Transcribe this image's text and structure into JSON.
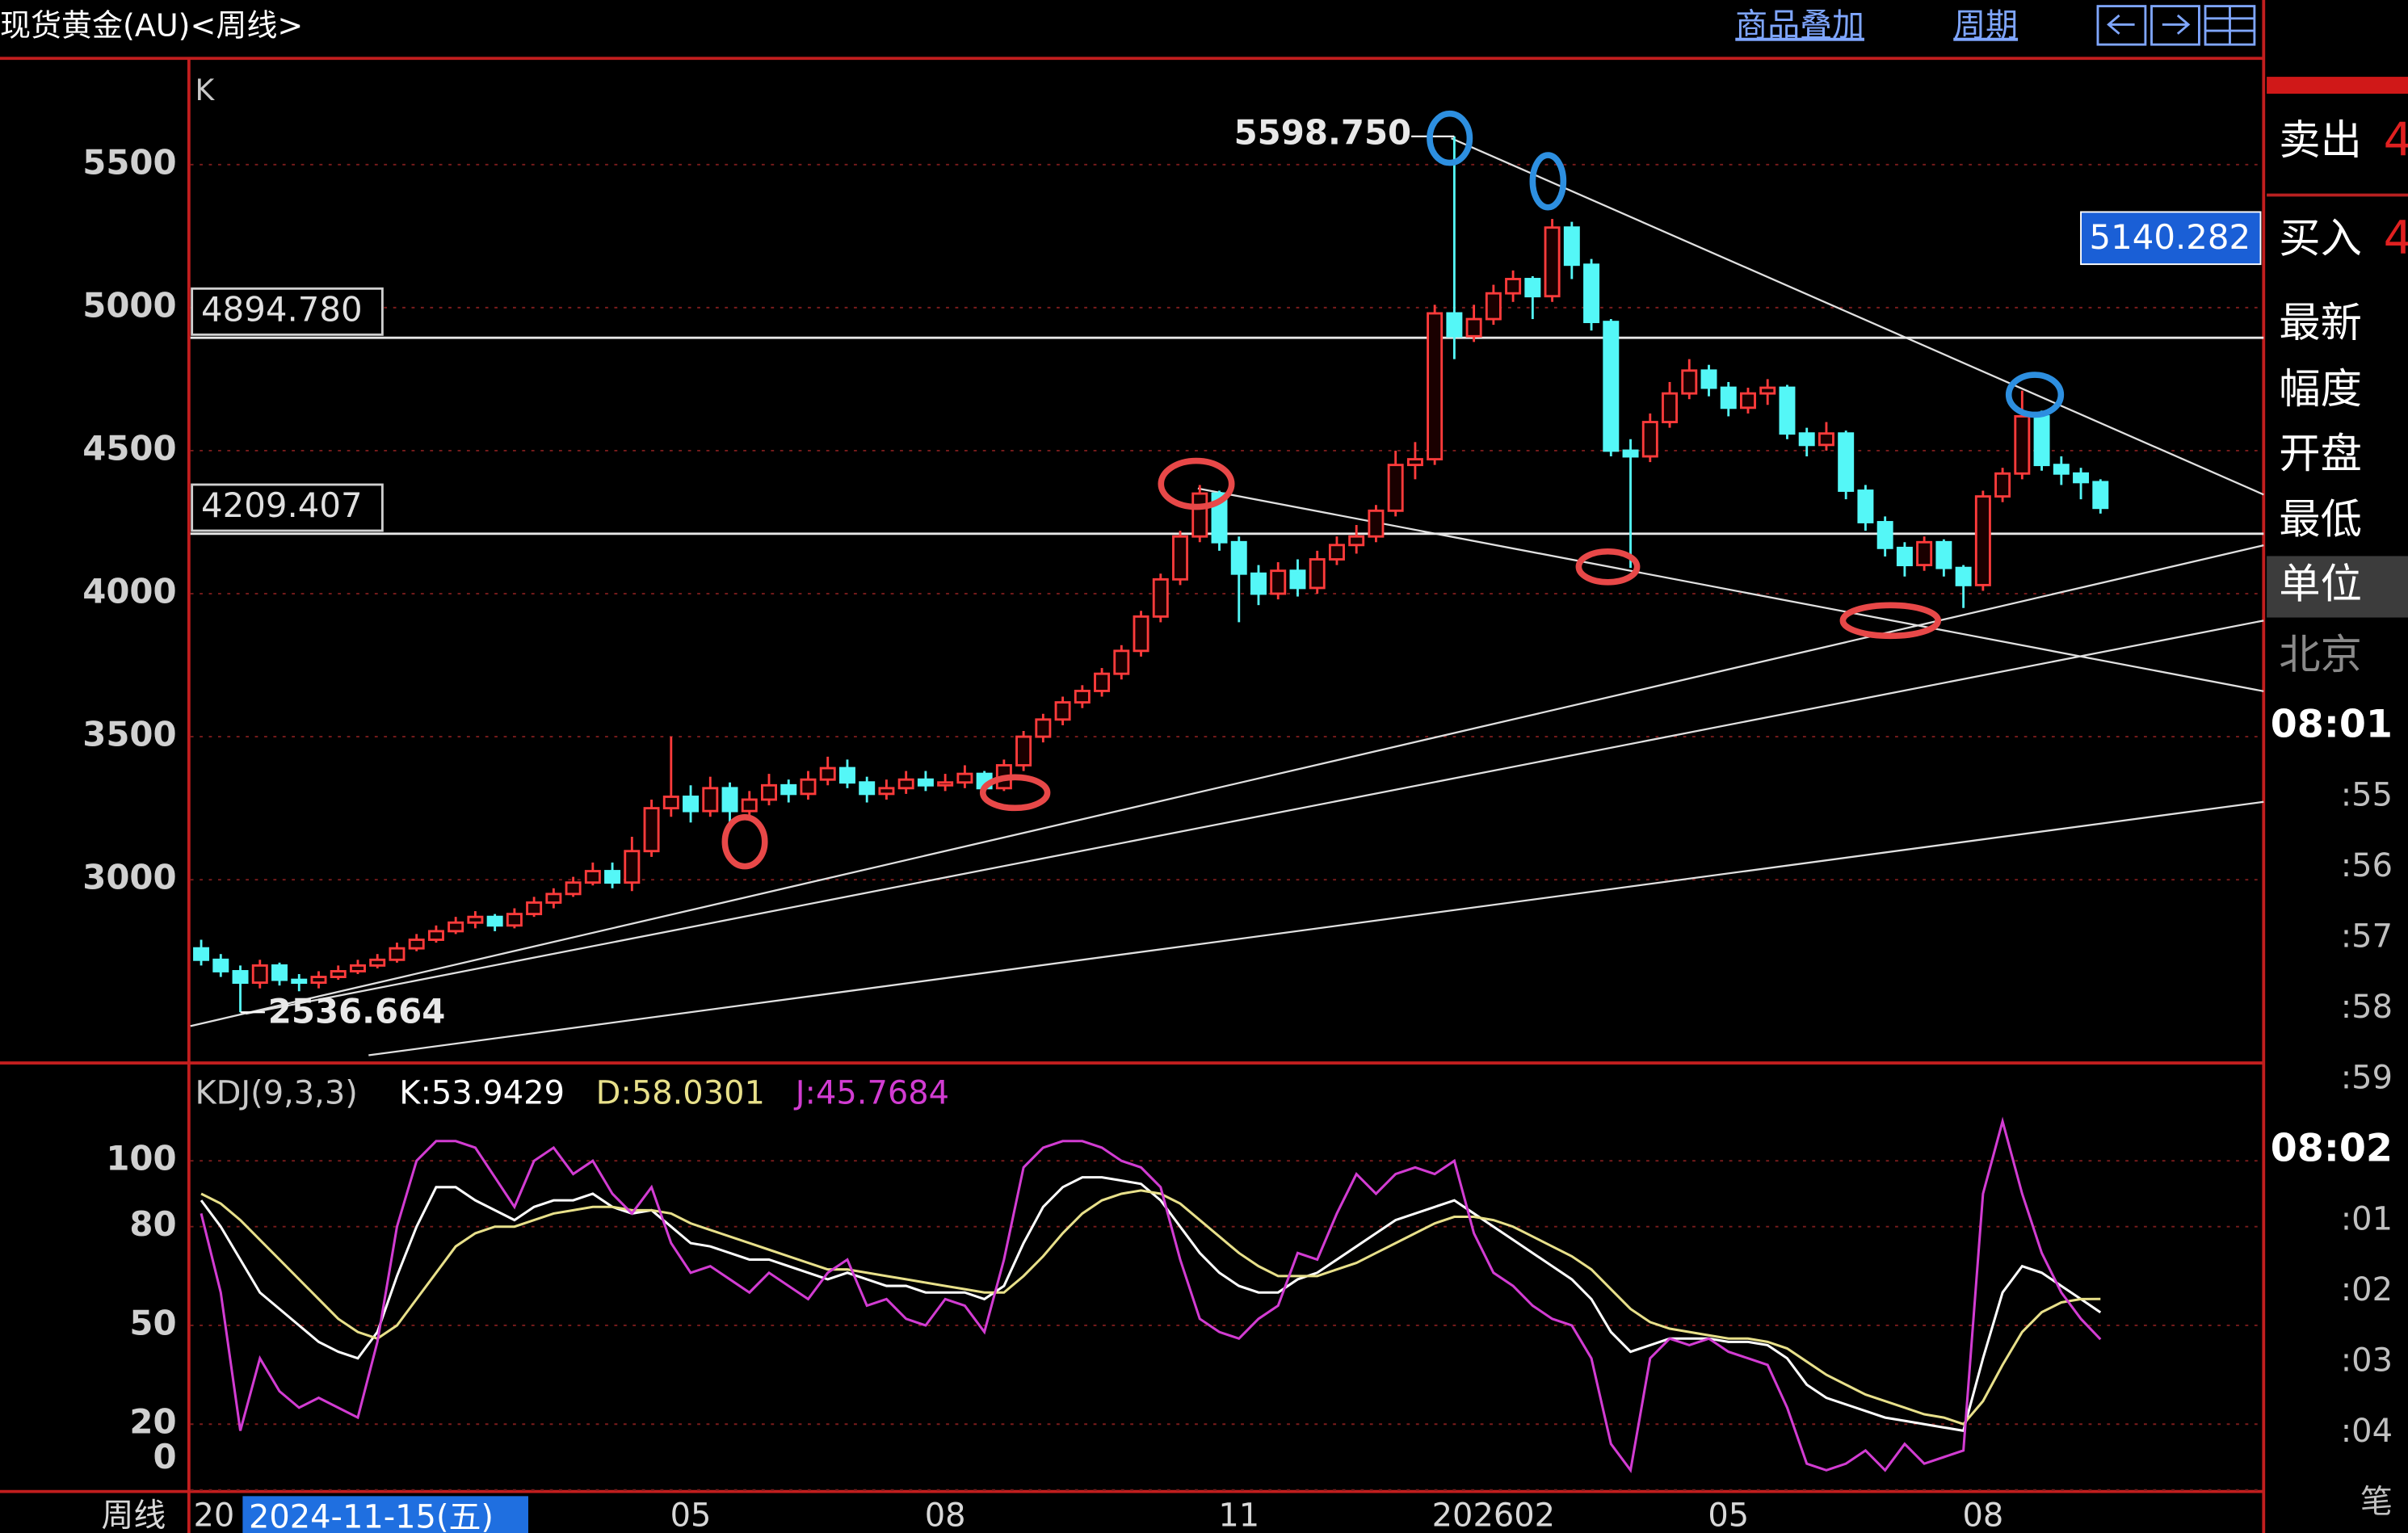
{
  "header": {
    "title": "现货黄金(AU)<周线>",
    "menu": [
      "商品叠加",
      "周期"
    ]
  },
  "chart_data": [
    {
      "type": "candlestick",
      "label": "K",
      "categories": [
        "20",
        null,
        null,
        null,
        null,
        null,
        null,
        null,
        null,
        null,
        null,
        null,
        null,
        null,
        null,
        null,
        null,
        null,
        null,
        null,
        null,
        null,
        null,
        null,
        null,
        "05",
        null,
        null,
        null,
        null,
        null,
        null,
        null,
        null,
        null,
        null,
        null,
        null,
        "08",
        null,
        null,
        null,
        null,
        null,
        null,
        null,
        null,
        null,
        null,
        null,
        null,
        null,
        null,
        "11",
        null,
        null,
        null,
        null,
        null,
        null,
        null,
        null,
        null,
        null,
        null,
        null,
        "202602",
        null,
        null,
        null,
        null,
        null,
        null,
        null,
        null,
        null,
        null,
        null,
        "05",
        null,
        null,
        null,
        null,
        null,
        null,
        null,
        null,
        null,
        null,
        null,
        null,
        "08",
        null,
        null,
        null,
        null,
        null,
        null,
        null
      ],
      "ohlc": [
        [
          2760,
          2790,
          2700,
          2720
        ],
        [
          2720,
          2740,
          2660,
          2680
        ],
        [
          2680,
          2700,
          2536.664,
          2640
        ],
        [
          2640,
          2720,
          2620,
          2700
        ],
        [
          2700,
          2710,
          2630,
          2650
        ],
        [
          2650,
          2670,
          2610,
          2640
        ],
        [
          2640,
          2680,
          2620,
          2660
        ],
        [
          2660,
          2700,
          2650,
          2680
        ],
        [
          2680,
          2720,
          2670,
          2700
        ],
        [
          2700,
          2740,
          2690,
          2720
        ],
        [
          2720,
          2780,
          2710,
          2760
        ],
        [
          2760,
          2810,
          2750,
          2790
        ],
        [
          2790,
          2840,
          2780,
          2820
        ],
        [
          2820,
          2870,
          2810,
          2850
        ],
        [
          2850,
          2890,
          2830,
          2870
        ],
        [
          2870,
          2880,
          2820,
          2840
        ],
        [
          2840,
          2900,
          2830,
          2880
        ],
        [
          2880,
          2940,
          2870,
          2920
        ],
        [
          2920,
          2970,
          2900,
          2950
        ],
        [
          2950,
          3010,
          2940,
          2990
        ],
        [
          2990,
          3060,
          2980,
          3030
        ],
        [
          3030,
          3060,
          2970,
          2990
        ],
        [
          2990,
          3150,
          2960,
          3100
        ],
        [
          3100,
          3280,
          3080,
          3250
        ],
        [
          3250,
          3500,
          3220,
          3290
        ],
        [
          3290,
          3330,
          3200,
          3240
        ],
        [
          3240,
          3360,
          3220,
          3320
        ],
        [
          3320,
          3340,
          3200,
          3240
        ],
        [
          3240,
          3310,
          3220,
          3280
        ],
        [
          3280,
          3370,
          3260,
          3330
        ],
        [
          3330,
          3350,
          3270,
          3300
        ],
        [
          3300,
          3380,
          3280,
          3350
        ],
        [
          3350,
          3430,
          3330,
          3390
        ],
        [
          3390,
          3420,
          3320,
          3340
        ],
        [
          3340,
          3360,
          3270,
          3300
        ],
        [
          3300,
          3350,
          3280,
          3320
        ],
        [
          3320,
          3380,
          3300,
          3350
        ],
        [
          3350,
          3380,
          3310,
          3330
        ],
        [
          3330,
          3370,
          3310,
          3340
        ],
        [
          3340,
          3400,
          3320,
          3370
        ],
        [
          3370,
          3380,
          3300,
          3320
        ],
        [
          3320,
          3420,
          3310,
          3400
        ],
        [
          3400,
          3520,
          3380,
          3500
        ],
        [
          3500,
          3580,
          3480,
          3560
        ],
        [
          3560,
          3640,
          3540,
          3620
        ],
        [
          3620,
          3680,
          3600,
          3660
        ],
        [
          3660,
          3740,
          3640,
          3720
        ],
        [
          3720,
          3820,
          3700,
          3800
        ],
        [
          3800,
          3940,
          3780,
          3920
        ],
        [
          3920,
          4070,
          3900,
          4050
        ],
        [
          4050,
          4220,
          4030,
          4200
        ],
        [
          4200,
          4380,
          4180,
          4350
        ],
        [
          4350,
          4360,
          4150,
          4180
        ],
        [
          4180,
          4200,
          3900,
          4070
        ],
        [
          4070,
          4100,
          3960,
          4000
        ],
        [
          4000,
          4110,
          3980,
          4080
        ],
        [
          4080,
          4120,
          3990,
          4020
        ],
        [
          4020,
          4150,
          4000,
          4120
        ],
        [
          4120,
          4200,
          4100,
          4170
        ],
        [
          4170,
          4240,
          4140,
          4200
        ],
        [
          4200,
          4310,
          4180,
          4290
        ],
        [
          4290,
          4500,
          4270,
          4450
        ],
        [
          4450,
          4530,
          4400,
          4470
        ],
        [
          4470,
          5010,
          4450,
          4980
        ],
        [
          4980,
          5598.75,
          4820,
          4900
        ],
        [
          4900,
          5010,
          4880,
          4960
        ],
        [
          4960,
          5080,
          4940,
          5050
        ],
        [
          5050,
          5130,
          5020,
          5100
        ],
        [
          5100,
          5110,
          4960,
          5040
        ],
        [
          5040,
          5310,
          5020,
          5280
        ],
        [
          5280,
          5300,
          5100,
          5150
        ],
        [
          5150,
          5170,
          4920,
          4950
        ],
        [
          4950,
          4960,
          4480,
          4500
        ],
        [
          4500,
          4540,
          4090,
          4480
        ],
        [
          4480,
          4630,
          4460,
          4600
        ],
        [
          4600,
          4740,
          4580,
          4700
        ],
        [
          4700,
          4820,
          4680,
          4780
        ],
        [
          4780,
          4800,
          4690,
          4720
        ],
        [
          4720,
          4740,
          4620,
          4650
        ],
        [
          4650,
          4720,
          4630,
          4700
        ],
        [
          4700,
          4750,
          4660,
          4720
        ],
        [
          4720,
          4730,
          4540,
          4560
        ],
        [
          4560,
          4580,
          4480,
          4520
        ],
        [
          4520,
          4600,
          4500,
          4560
        ],
        [
          4560,
          4570,
          4330,
          4360
        ],
        [
          4360,
          4380,
          4220,
          4250
        ],
        [
          4250,
          4270,
          4130,
          4160
        ],
        [
          4160,
          4180,
          4060,
          4100
        ],
        [
          4100,
          4200,
          4080,
          4180
        ],
        [
          4180,
          4190,
          4060,
          4090
        ],
        [
          4090,
          4100,
          3950,
          4030
        ],
        [
          4030,
          4360,
          4010,
          4340
        ],
        [
          4340,
          4440,
          4320,
          4420
        ],
        [
          4420,
          4710,
          4400,
          4620
        ],
        [
          4620,
          4640,
          4430,
          4450
        ],
        [
          4450,
          4480,
          4380,
          4420
        ],
        [
          4420,
          4440,
          4330,
          4390
        ],
        [
          4390,
          4400,
          4280,
          4300
        ]
      ],
      "up_color": "#ff3b3b",
      "down_color": "#54f7f7",
      "ylim": [
        2370,
        5850
      ],
      "yticks": [
        3000,
        3500,
        4000,
        4500,
        5000,
        5500
      ],
      "grid": true,
      "hlines": [
        {
          "value": 4894.78,
          "label": "4894.780"
        },
        {
          "value": 4209.407,
          "label": "4209.407"
        }
      ],
      "high": {
        "value": 5598.75,
        "label": "5598.750"
      },
      "low": {
        "value": 2536.664,
        "label": "2536.664"
      },
      "cursor_label": "2024-11-15(五)"
    },
    {
      "type": "line",
      "title": "KDJ(9,3,3)",
      "series": [
        {
          "name": "K:53.9429",
          "color": "#ffffff",
          "values": [
            88,
            80,
            70,
            60,
            55,
            50,
            45,
            42,
            40,
            48,
            65,
            80,
            92,
            92,
            88,
            85,
            82,
            86,
            88,
            88,
            90,
            86,
            84,
            85,
            80,
            75,
            74,
            72,
            70,
            70,
            68,
            66,
            64,
            66,
            64,
            62,
            62,
            60,
            60,
            60,
            58,
            62,
            75,
            86,
            92,
            95,
            95,
            94,
            93,
            88,
            80,
            72,
            66,
            62,
            60,
            60,
            64,
            66,
            70,
            74,
            78,
            82,
            84,
            86,
            88,
            84,
            80,
            76,
            72,
            68,
            64,
            58,
            48,
            42,
            44,
            46,
            46,
            46,
            45,
            45,
            44,
            40,
            32,
            28,
            26,
            24,
            22,
            21,
            20,
            19,
            18,
            40,
            60,
            68,
            66,
            62,
            58,
            53.9429
          ]
        },
        {
          "name": "D:58.0301",
          "color": "#e8e08a",
          "values": [
            90,
            87,
            82,
            76,
            70,
            64,
            58,
            52,
            48,
            46,
            50,
            58,
            66,
            74,
            78,
            80,
            80,
            82,
            84,
            85,
            86,
            86,
            85,
            85,
            84,
            81,
            79,
            77,
            75,
            73,
            71,
            69,
            67,
            67,
            66,
            65,
            64,
            63,
            62,
            61,
            60,
            60,
            65,
            71,
            78,
            84,
            88,
            90,
            91,
            90,
            87,
            82,
            77,
            72,
            68,
            65,
            65,
            65,
            67,
            69,
            72,
            75,
            78,
            81,
            83,
            83,
            82,
            80,
            77,
            74,
            71,
            67,
            61,
            55,
            51,
            49,
            48,
            47,
            46,
            46,
            45,
            43,
            39,
            35,
            32,
            29,
            27,
            25,
            23,
            22,
            20,
            27,
            38,
            48,
            54,
            57,
            58,
            58.0301
          ]
        },
        {
          "name": "J:45.7684",
          "color": "#d23cd2",
          "values": [
            84,
            60,
            18,
            40,
            30,
            25,
            28,
            25,
            22,
            45,
            80,
            100,
            106,
            106,
            104,
            95,
            86,
            100,
            104,
            96,
            100,
            90,
            84,
            92,
            75,
            66,
            68,
            64,
            60,
            66,
            62,
            58,
            66,
            70,
            56,
            58,
            52,
            50,
            58,
            56,
            48,
            70,
            98,
            104,
            106,
            106,
            104,
            100,
            98,
            92,
            70,
            52,
            48,
            46,
            52,
            56,
            72,
            70,
            84,
            96,
            90,
            96,
            98,
            96,
            100,
            78,
            66,
            62,
            56,
            52,
            50,
            40,
            14,
            6,
            40,
            46,
            44,
            46,
            42,
            40,
            38,
            25,
            8,
            6,
            8,
            12,
            6,
            14,
            8,
            10,
            12,
            90,
            112,
            90,
            72,
            60,
            52,
            45.7684
          ]
        }
      ],
      "ylim": [
        0,
        126
      ],
      "yticks": [
        0,
        20,
        50,
        80,
        100
      ],
      "grid": true
    }
  ],
  "sidebar": {
    "rows": [
      {
        "label": "卖出",
        "value": "4"
      },
      {
        "label": "买入",
        "value": "4"
      }
    ],
    "price_box": "5140.282",
    "fields": [
      "最新",
      "幅度",
      "开盘",
      "最低",
      "单位",
      "北京"
    ],
    "times": [
      "08:01",
      ":55",
      ":56",
      ":57",
      ":58",
      ":59",
      "08:02",
      ":01",
      ":02",
      ":03",
      ":04",
      "笔"
    ]
  },
  "footer": {
    "period": "周线"
  }
}
